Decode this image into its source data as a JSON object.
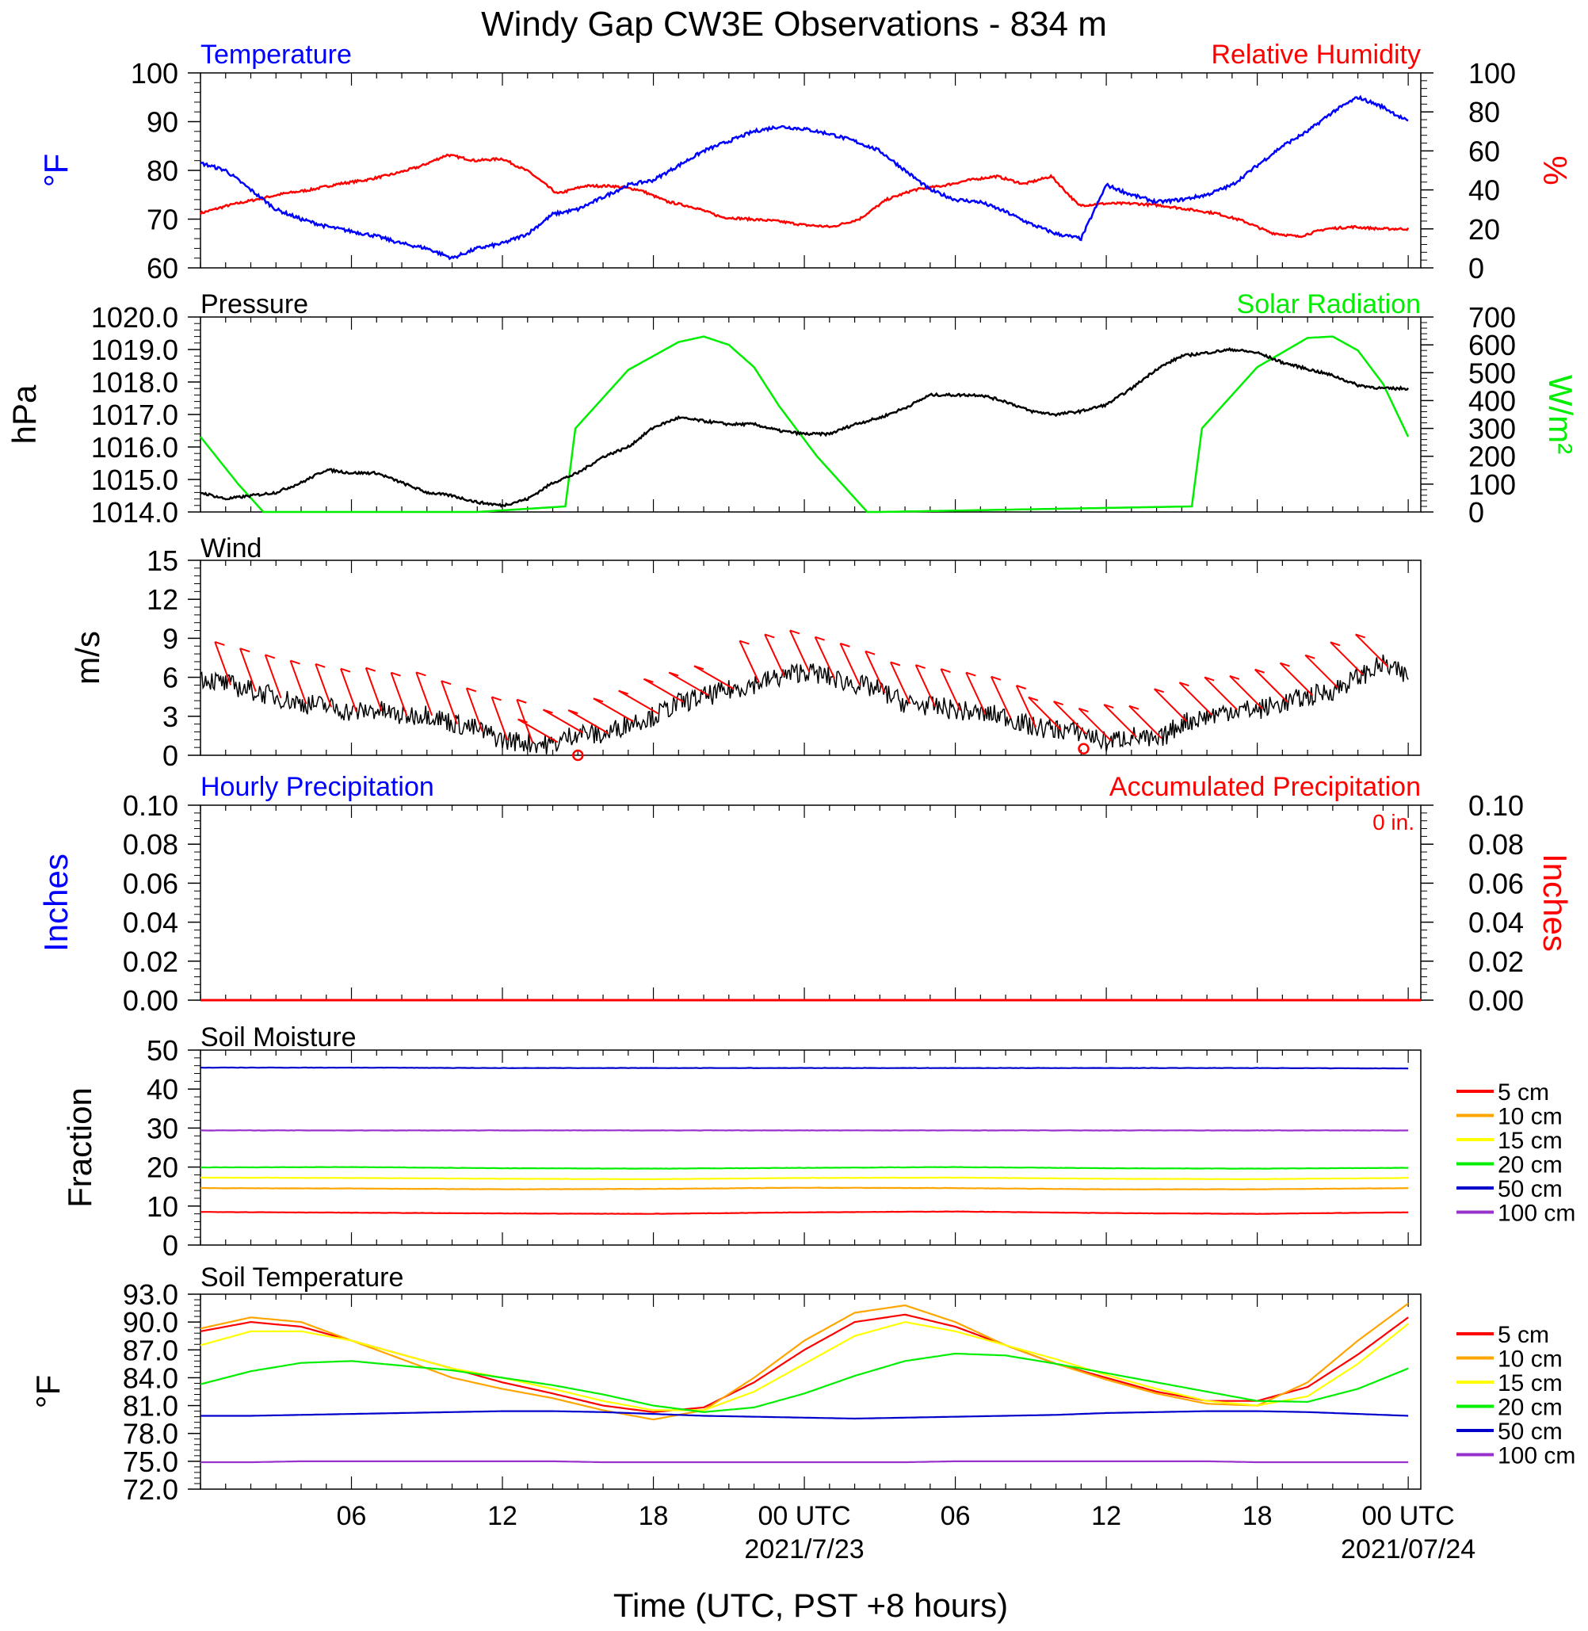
{
  "title": "Windy Gap CW3E Observations - 834 m",
  "xaxis": {
    "label": "Time (UTC, PST +8 hours)",
    "ticks": [
      "06",
      "12",
      "18",
      "00 UTC",
      "06",
      "12",
      "18",
      "00 UTC"
    ],
    "dates": [
      "2021/7/23",
      "2021/07/24"
    ]
  },
  "colors": {
    "temperature": "#0000ff",
    "humidity": "#ff0000",
    "pressure": "#000000",
    "solar": "#00ee00",
    "wind": "#000000",
    "barbs": "#ff0000",
    "accum": "#ff0000",
    "hourly": "#0000ff"
  },
  "chart_data": [
    {
      "type": "line",
      "panel": "temperature-humidity",
      "left_title": "Temperature",
      "right_title": "Relative Humidity",
      "ylabel_left": "°F",
      "ylabel_right": "%",
      "ylim_left": [
        60,
        100
      ],
      "ylim_right": [
        0,
        100
      ],
      "yticks_left": [
        "60",
        "70",
        "80",
        "90",
        "100"
      ],
      "yticks_right": [
        "0",
        "20",
        "40",
        "60",
        "80",
        "100"
      ],
      "series": [
        {
          "name": "Temperature",
          "axis": "left",
          "x_hours": [
            0,
            1,
            2,
            3,
            4,
            5,
            6,
            7,
            8,
            9,
            10,
            11,
            12,
            13,
            14,
            15,
            16,
            17,
            18,
            19,
            20,
            21,
            22,
            23,
            24,
            25,
            26,
            27,
            28,
            29,
            30,
            31,
            32,
            33,
            34,
            35,
            36,
            37,
            38,
            39,
            40,
            41,
            42,
            43,
            44,
            45,
            46,
            47,
            48
          ],
          "values": [
            81.5,
            80,
            76,
            72,
            70,
            68.5,
            67.5,
            66.5,
            65,
            64,
            62,
            64,
            65,
            67,
            71,
            72,
            74.5,
            77,
            78,
            81,
            84,
            86,
            88,
            89,
            88.5,
            87.5,
            86,
            84,
            80,
            76,
            74,
            73.5,
            71.5,
            69,
            67,
            66,
            77,
            75,
            73.5,
            74,
            75,
            77,
            81,
            85,
            88,
            92,
            95,
            93,
            90
          ]
        },
        {
          "name": "Relative Humidity",
          "axis": "right",
          "values": [
            28,
            32,
            35,
            38,
            40,
            43,
            45,
            48,
            52,
            58,
            55,
            56,
            49,
            38,
            42,
            42,
            40,
            34,
            31,
            26,
            25,
            24,
            22,
            21,
            25,
            35,
            40,
            42,
            45,
            47,
            43,
            47,
            32,
            33,
            33,
            32,
            30,
            28,
            24,
            18,
            16,
            20,
            21,
            20,
            20
          ]
        }
      ]
    },
    {
      "type": "line",
      "panel": "pressure-solar",
      "left_title": "Pressure",
      "right_title": "Solar Radiation",
      "ylabel_left": "hPa",
      "ylabel_right": "W/m²",
      "ylim_left": [
        1014.0,
        1020.0
      ],
      "ylim_right": [
        0,
        700
      ],
      "yticks_left": [
        "1014.0",
        "1015.0",
        "1016.0",
        "1017.0",
        "1018.0",
        "1019.0",
        "1020.0"
      ],
      "yticks_right": [
        "0",
        "100",
        "200",
        "300",
        "400",
        "500",
        "600",
        "700"
      ],
      "series": [
        {
          "name": "Pressure",
          "axis": "left",
          "x_hours": [
            0,
            1,
            2,
            3,
            4,
            5,
            6,
            7,
            8,
            9,
            10,
            11,
            12,
            13,
            14,
            15,
            16,
            17,
            18,
            19,
            20,
            21,
            22,
            23,
            24,
            25,
            26,
            27,
            28,
            29,
            30,
            31,
            32,
            33,
            34,
            35,
            36,
            37,
            38,
            39,
            40,
            41,
            42,
            43,
            44,
            45,
            46,
            47,
            48
          ],
          "values": [
            1014.6,
            1014.4,
            1014.5,
            1014.6,
            1014.9,
            1015.3,
            1015.2,
            1015.2,
            1014.9,
            1014.6,
            1014.5,
            1014.3,
            1014.2,
            1014.4,
            1014.9,
            1015.2,
            1015.7,
            1016.0,
            1016.6,
            1016.9,
            1016.8,
            1016.7,
            1016.7,
            1016.5,
            1016.4,
            1016.4,
            1016.7,
            1016.9,
            1017.2,
            1017.6,
            1017.6,
            1017.6,
            1017.4,
            1017.1,
            1017.0,
            1017.1,
            1017.3,
            1017.8,
            1018.4,
            1018.8,
            1018.9,
            1019.0,
            1018.9,
            1018.6,
            1018.4,
            1018.2,
            1017.9,
            1017.8,
            1017.8
          ]
        },
        {
          "name": "Solar Radiation",
          "axis": "right",
          "x_hours": [
            0,
            1.5,
            2.5,
            11,
            14.5,
            14.9,
            17,
            19,
            20,
            21,
            22,
            23,
            24.5,
            26.5,
            27,
            39.4,
            39.8,
            42,
            44,
            45,
            46,
            47,
            48
          ],
          "values": [
            270,
            100,
            0,
            0,
            20,
            300,
            510,
            610,
            630,
            600,
            520,
            380,
            200,
            0,
            0,
            20,
            300,
            520,
            625,
            630,
            580,
            460,
            270
          ]
        }
      ]
    },
    {
      "type": "line",
      "panel": "wind",
      "left_title": "Wind",
      "ylabel": "m/s",
      "ylim": [
        0,
        15
      ],
      "yticks": [
        "0",
        "3",
        "6",
        "9",
        "12",
        "15"
      ],
      "series": [
        {
          "name": "Wind",
          "x_hours": [
            0,
            1,
            2,
            3,
            4,
            5,
            6,
            7,
            8,
            9,
            10,
            11,
            12,
            13,
            14,
            15,
            16,
            17,
            18,
            19,
            20,
            21,
            22,
            23,
            24,
            25,
            26,
            27,
            28,
            29,
            30,
            31,
            32,
            33,
            34,
            35,
            36,
            37,
            38,
            39,
            40,
            41,
            42,
            43,
            44,
            45,
            46,
            47,
            48
          ],
          "values": [
            6,
            5.5,
            5,
            4.5,
            4,
            3.8,
            3.3,
            3.5,
            3,
            3.2,
            2.5,
            2,
            1.2,
            1,
            0.8,
            1.8,
            1.5,
            2.5,
            3,
            4,
            4.5,
            5,
            5.5,
            6,
            6.5,
            6,
            5.5,
            5,
            4,
            3.8,
            3.5,
            3.2,
            3,
            2.2,
            2,
            1.8,
            1,
            1.5,
            1,
            2.5,
            3,
            3.5,
            3.5,
            4,
            4.5,
            5,
            6,
            7,
            6
          ]
        }
      ],
      "calm_markers": [
        "calm-wind-1",
        "calm-wind-2"
      ]
    },
    {
      "type": "line",
      "panel": "precipitation",
      "left_title": "Hourly Precipitation",
      "right_title": "Accumulated Precipitation",
      "annotation": "0 in.",
      "ylabel_left": "Inches",
      "ylabel_right": "Inches",
      "ylim": [
        0,
        0.1
      ],
      "yticks": [
        "0.00",
        "0.02",
        "0.04",
        "0.06",
        "0.08",
        "0.10"
      ],
      "series": [
        {
          "name": "Hourly Precipitation",
          "values": [
            0,
            0
          ]
        },
        {
          "name": "Accumulated Precipitation",
          "values": [
            0,
            0
          ]
        }
      ]
    },
    {
      "type": "line",
      "panel": "soil-moisture",
      "left_title": "Soil Moisture",
      "ylabel": "Fraction",
      "ylim": [
        0,
        50
      ],
      "yticks": [
        "0",
        "10",
        "20",
        "30",
        "40",
        "50"
      ],
      "series": [
        {
          "name": "5 cm",
          "color": "#ff0000",
          "values": [
            8.5,
            8.3,
            8.1,
            8.0,
            8.4,
            8.6,
            8.2,
            8.0,
            8.4
          ]
        },
        {
          "name": "10 cm",
          "color": "#ffa500",
          "values": [
            14.6,
            14.5,
            14.3,
            14.4,
            14.7,
            14.6,
            14.3,
            14.3,
            14.6
          ]
        },
        {
          "name": "15 cm",
          "color": "#ffff00",
          "values": [
            17.3,
            17.2,
            17.0,
            16.9,
            17.2,
            17.3,
            17.0,
            16.9,
            17.2
          ]
        },
        {
          "name": "20 cm",
          "color": "#00ee00",
          "values": [
            19.9,
            20.0,
            19.7,
            19.6,
            19.8,
            20.0,
            19.7,
            19.6,
            19.8
          ]
        },
        {
          "name": "50 cm",
          "color": "#0000cd",
          "values": [
            45.5,
            45.5,
            45.4,
            45.4,
            45.4,
            45.4,
            45.4,
            45.4,
            45.3
          ]
        },
        {
          "name": "100 cm",
          "color": "#9932cc",
          "values": [
            29.4,
            29.4,
            29.4,
            29.4,
            29.4,
            29.4,
            29.4,
            29.4,
            29.4
          ]
        }
      ]
    },
    {
      "type": "line",
      "panel": "soil-temperature",
      "left_title": "Soil Temperature",
      "ylabel": "°F",
      "ylim": [
        72.0,
        93.0
      ],
      "yticks": [
        "72.0",
        "75.0",
        "78.0",
        "81.0",
        "84.0",
        "87.0",
        "90.0",
        "93.0"
      ],
      "x_hours": [
        0,
        2,
        4,
        6,
        8,
        10,
        12,
        14,
        16,
        18,
        20,
        22,
        24,
        26,
        28,
        30,
        32,
        34,
        36,
        38,
        40,
        42,
        44,
        46,
        48
      ],
      "series": [
        {
          "name": "5 cm",
          "color": "#ff0000",
          "values": [
            89.0,
            90.0,
            89.5,
            88.0,
            86.5,
            85.0,
            83.5,
            82.3,
            81.0,
            80.3,
            80.8,
            83.5,
            87.0,
            90.0,
            90.8,
            89.5,
            87.5,
            85.5,
            84.0,
            82.5,
            81.5,
            81.5,
            83.0,
            86.5,
            90.5
          ]
        },
        {
          "name": "10 cm",
          "color": "#ffa500",
          "values": [
            89.3,
            90.5,
            90.0,
            88.0,
            86.0,
            84.0,
            82.8,
            81.8,
            80.5,
            79.5,
            80.5,
            84.0,
            88.0,
            91.0,
            91.8,
            90.0,
            87.5,
            85.5,
            83.8,
            82.3,
            81.2,
            81.0,
            83.5,
            88.0,
            92.0
          ]
        },
        {
          "name": "15 cm",
          "color": "#ffff00",
          "values": [
            87.5,
            89.0,
            89.0,
            88.0,
            86.5,
            85.0,
            84.0,
            82.8,
            81.5,
            80.5,
            80.5,
            82.5,
            85.5,
            88.5,
            90.0,
            89.0,
            87.5,
            86.0,
            84.3,
            82.8,
            81.5,
            81.0,
            82.0,
            85.5,
            89.8
          ]
        },
        {
          "name": "20 cm",
          "color": "#00ee00",
          "values": [
            83.3,
            84.7,
            85.6,
            85.8,
            85.3,
            84.8,
            84.0,
            83.2,
            82.2,
            81.0,
            80.3,
            80.8,
            82.3,
            84.2,
            85.8,
            86.6,
            86.4,
            85.5,
            84.5,
            83.5,
            82.5,
            81.5,
            81.4,
            82.8,
            85.0
          ]
        },
        {
          "name": "50 cm",
          "color": "#0000cd",
          "values": [
            79.9,
            79.9,
            80.0,
            80.1,
            80.2,
            80.3,
            80.4,
            80.4,
            80.3,
            80.1,
            79.9,
            79.8,
            79.7,
            79.6,
            79.7,
            79.8,
            79.9,
            80.0,
            80.2,
            80.3,
            80.4,
            80.4,
            80.3,
            80.1,
            79.9
          ]
        },
        {
          "name": "100 cm",
          "color": "#9932cc",
          "values": [
            74.9,
            74.9,
            75.0,
            75.0,
            75.0,
            75.0,
            75.0,
            75.0,
            74.9,
            74.9,
            74.9,
            74.9,
            74.9,
            74.9,
            74.9,
            75.0,
            75.0,
            75.0,
            75.0,
            75.0,
            75.0,
            74.9,
            74.9,
            74.9,
            74.9
          ]
        }
      ]
    }
  ]
}
